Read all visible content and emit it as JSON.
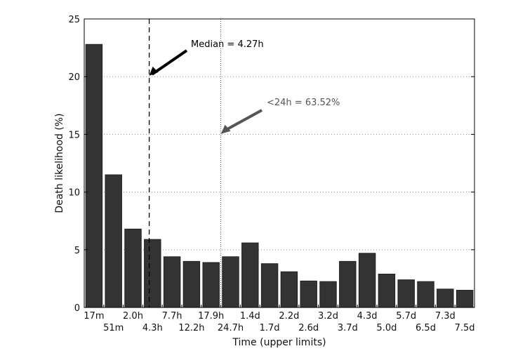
{
  "chart_data": {
    "type": "bar",
    "categories": [
      "17m",
      "51m",
      "2.0h",
      "4.3h",
      "7.7h",
      "12.2h",
      "17.9h",
      "24.7h",
      "1.4d",
      "1.7d",
      "2.2d",
      "2.6d",
      "3.2d",
      "3.7d",
      "4.3d",
      "5.0d",
      "5.7d",
      "6.5d",
      "7.3d",
      "7.5d"
    ],
    "values": [
      22.8,
      11.5,
      6.8,
      5.9,
      4.4,
      4.0,
      3.9,
      4.4,
      5.6,
      3.8,
      3.1,
      2.3,
      2.25,
      4.0,
      4.7,
      2.9,
      2.4,
      2.25,
      1.6,
      1.5
    ],
    "xlabel": "Time (upper limits)",
    "ylabel": "Death likelihood (%)",
    "ylim": [
      0,
      25
    ],
    "yticks": [
      0,
      5,
      10,
      15,
      20,
      25
    ],
    "grid": "horizontal dotted",
    "bar_color": "#333333",
    "annotations": [
      {
        "text": "Median = 4.27h",
        "position_category": 3.33,
        "line_style": "dashed",
        "color": "#000000"
      },
      {
        "text": "<24h = 63.52%",
        "position_category": 7.0,
        "line_style": "dotted",
        "color": "#555555"
      }
    ]
  }
}
